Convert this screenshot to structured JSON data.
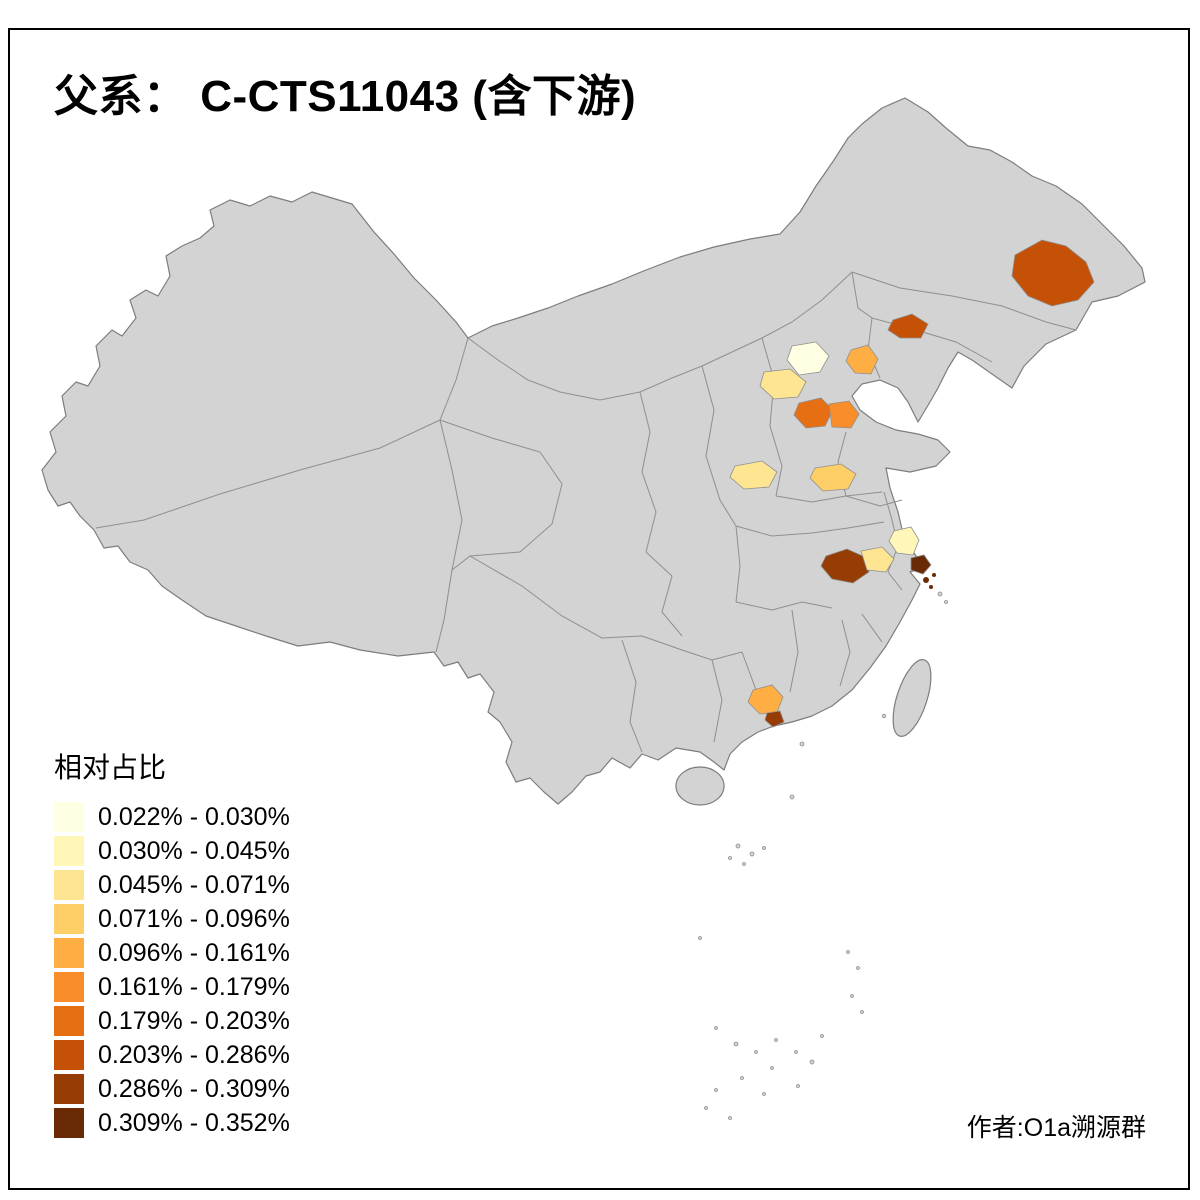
{
  "title": "父系： C-CTS11043 (含下游)",
  "author": "作者:O1a溯源群",
  "legend": {
    "title": "相对占比",
    "classes": [
      {
        "label": "0.022% - 0.030%",
        "color": "#FFFFE3"
      },
      {
        "label": "0.030% - 0.045%",
        "color": "#FFF6BA"
      },
      {
        "label": "0.045% - 0.071%",
        "color": "#FEE591"
      },
      {
        "label": "0.071% - 0.096%",
        "color": "#FECF66"
      },
      {
        "label": "0.096% - 0.161%",
        "color": "#FEAE43"
      },
      {
        "label": "0.161% - 0.179%",
        "color": "#F88D2A"
      },
      {
        "label": "0.179% - 0.203%",
        "color": "#E66F13"
      },
      {
        "label": "0.203% - 0.286%",
        "color": "#C55106"
      },
      {
        "label": "0.286% - 0.309%",
        "color": "#963D05"
      },
      {
        "label": "0.309% - 0.352%",
        "color": "#6A2A05"
      }
    ]
  },
  "map": {
    "land_color": "#D3D3D3",
    "outline_color": "#7D7D7D",
    "border_color": "#8F8F8F",
    "sea_color": "#FFFFFF",
    "regions": [
      {
        "name": "east-heilongjiang",
        "bin": "0.203% - 0.286%",
        "color": "#C55106"
      },
      {
        "name": "west-liaoning",
        "bin": "0.203% - 0.286%",
        "color": "#C55106"
      },
      {
        "name": "beijing-area",
        "bin": "0.022% - 0.030%",
        "color": "#FFFFE3"
      },
      {
        "name": "northwest-hebei",
        "bin": "0.045% - 0.071%",
        "color": "#FEE591"
      },
      {
        "name": "east-hebei-coast",
        "bin": "0.096% - 0.161%",
        "color": "#FEAE43"
      },
      {
        "name": "south-hebei-west",
        "bin": "0.179% - 0.203%",
        "color": "#E66F13"
      },
      {
        "name": "south-hebei-east",
        "bin": "0.161% - 0.179%",
        "color": "#F88D2A"
      },
      {
        "name": "central-shanxi",
        "bin": "0.045% - 0.071%",
        "color": "#FEE591"
      },
      {
        "name": "east-henan",
        "bin": "0.071% - 0.096%",
        "color": "#FECF66"
      },
      {
        "name": "southwest-anhui",
        "bin": "0.286% - 0.309%",
        "color": "#963D05"
      },
      {
        "name": "south-anhui",
        "bin": "0.045% - 0.071%",
        "color": "#FEE591"
      },
      {
        "name": "south-jiangsu",
        "bin": "0.030% - 0.045%",
        "color": "#FFF6BA"
      },
      {
        "name": "shanghai",
        "bin": "0.309% - 0.352%",
        "color": "#6A2A05"
      },
      {
        "name": "central-guangdong",
        "bin": "0.096% - 0.161%",
        "color": "#FEAE43"
      },
      {
        "name": "pearl-river-delta",
        "bin": "0.286% - 0.309%",
        "color": "#963D05"
      },
      {
        "name": "zhoushan-islands",
        "bin": "0.309% - 0.352%",
        "color": "#6A2A05"
      }
    ]
  },
  "chart_data": {
    "type": "choropleth",
    "title": "父系： C-CTS11043 (含下游)",
    "legend_title": "相对占比",
    "bins": [
      "0.022% - 0.030%",
      "0.030% - 0.045%",
      "0.045% - 0.071%",
      "0.071% - 0.096%",
      "0.096% - 0.161%",
      "0.161% - 0.179%",
      "0.179% - 0.203%",
      "0.203% - 0.286%",
      "0.286% - 0.309%",
      "0.309% - 0.352%"
    ],
    "bin_colors": [
      "#FFFFE3",
      "#FFF6BA",
      "#FEE591",
      "#FECF66",
      "#FEAE43",
      "#F88D2A",
      "#E66F13",
      "#C55106",
      "#963D05",
      "#6A2A05"
    ],
    "regions": [
      {
        "area": "east-heilongjiang",
        "bin": "0.203% - 0.286%"
      },
      {
        "area": "west-liaoning",
        "bin": "0.203% - 0.286%"
      },
      {
        "area": "beijing-area",
        "bin": "0.022% - 0.030%"
      },
      {
        "area": "northwest-hebei",
        "bin": "0.045% - 0.071%"
      },
      {
        "area": "east-hebei-coast",
        "bin": "0.096% - 0.161%"
      },
      {
        "area": "south-hebei-west",
        "bin": "0.179% - 0.203%"
      },
      {
        "area": "south-hebei-east",
        "bin": "0.161% - 0.179%"
      },
      {
        "area": "central-shanxi",
        "bin": "0.045% - 0.071%"
      },
      {
        "area": "east-henan",
        "bin": "0.071% - 0.096%"
      },
      {
        "area": "southwest-anhui",
        "bin": "0.286% - 0.309%"
      },
      {
        "area": "south-anhui",
        "bin": "0.045% - 0.071%"
      },
      {
        "area": "south-jiangsu",
        "bin": "0.030% - 0.045%"
      },
      {
        "area": "shanghai",
        "bin": "0.309% - 0.352%"
      },
      {
        "area": "central-guangdong",
        "bin": "0.096% - 0.161%"
      },
      {
        "area": "pearl-river-delta",
        "bin": "0.286% - 0.309%"
      },
      {
        "area": "zhoushan-islands",
        "bin": "0.309% - 0.352%"
      }
    ]
  }
}
